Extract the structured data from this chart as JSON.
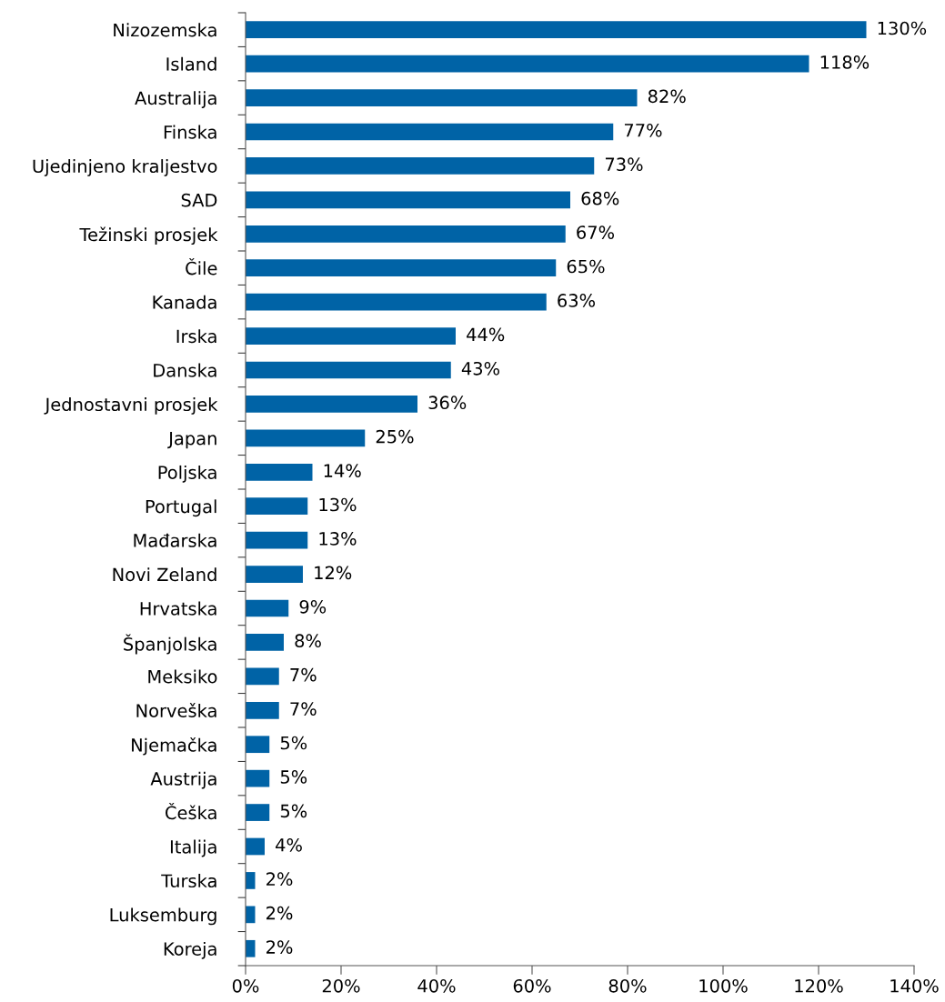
{
  "chart_data": {
    "type": "bar",
    "orientation": "horizontal",
    "categories": [
      "Nizozemska",
      "Island",
      "Australija",
      "Finska",
      "Ujedinjeno kraljestvo",
      "SAD",
      "Težinski prosjek",
      "Čile",
      "Kanada",
      "Irska",
      "Danska",
      "Jednostavni prosjek",
      "Japan",
      "Poljska",
      "Portugal",
      "Mađarska",
      "Novi Zeland",
      "Hrvatska",
      "Španjolska",
      "Meksiko",
      "Norveška",
      "Njemačka",
      "Austrija",
      "Češka",
      "Italija",
      "Turska",
      "Luksemburg",
      "Koreja"
    ],
    "values": [
      130,
      118,
      82,
      77,
      73,
      68,
      67,
      65,
      63,
      44,
      43,
      36,
      25,
      14,
      13,
      13,
      12,
      9,
      8,
      7,
      7,
      5,
      5,
      5,
      4,
      2,
      2,
      2
    ],
    "value_labels": [
      "130%",
      "118%",
      "82%",
      "77%",
      "73%",
      "68%",
      "67%",
      "65%",
      "63%",
      "44%",
      "43%",
      "36%",
      "25%",
      "14%",
      "13%",
      "13%",
      "12%",
      "9%",
      "8%",
      "7%",
      "7%",
      "5%",
      "5%",
      "5%",
      "4%",
      "2%",
      "2%",
      "2%"
    ],
    "color": "#0063a6",
    "xlim": [
      0,
      140
    ],
    "xticks": [
      {
        "value": 0,
        "label": "0%"
      },
      {
        "value": 20,
        "label": "20%"
      },
      {
        "value": 40,
        "label": "40%"
      },
      {
        "value": 60,
        "label": "60%"
      },
      {
        "value": 80,
        "label": "80%"
      },
      {
        "value": 100,
        "label": "100%"
      },
      {
        "value": 120,
        "label": "120%"
      },
      {
        "value": 140,
        "label": "140%"
      }
    ],
    "grid": false,
    "legend": false
  }
}
